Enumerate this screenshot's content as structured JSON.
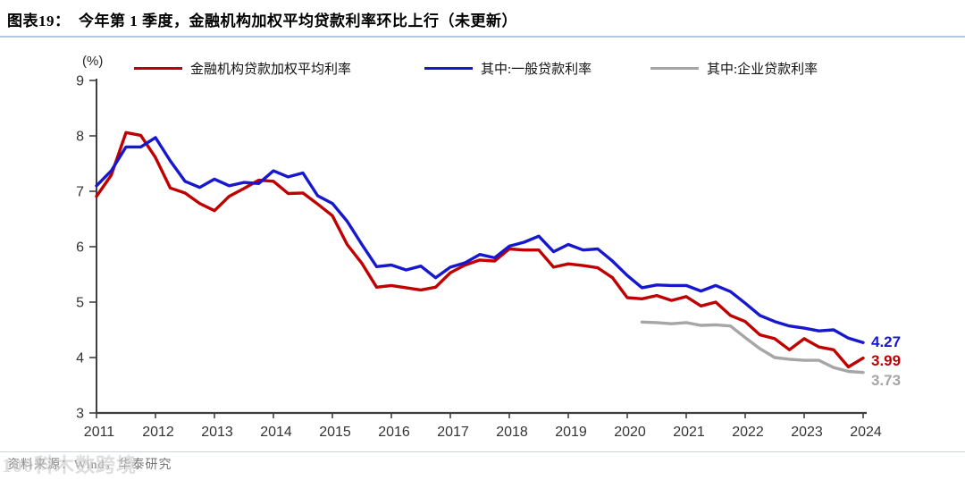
{
  "header": {
    "title": "图表19：  今年第 1 季度，金融机构加权平均贷款利率环比上行（未更新）"
  },
  "footer": {
    "source": "资料来源：Wind，华泰研究",
    "watermark": "100科木数跨境"
  },
  "chart_data": {
    "type": "line",
    "ylabel": "(%)",
    "ylim": [
      3,
      9
    ],
    "yticks": [
      3,
      4,
      5,
      6,
      7,
      8,
      9
    ],
    "x_tick_labels": [
      "2011",
      "2012",
      "2013",
      "2014",
      "2015",
      "2016",
      "2017",
      "2018",
      "2019",
      "2020",
      "2021",
      "2022",
      "2023",
      "2024"
    ],
    "x_unit": "quarter",
    "grid": false,
    "legend_position": "top",
    "series": [
      {
        "name": "金融机构贷款加权平均利率",
        "color": "#C00000",
        "start": "2011Q1",
        "values": [
          6.91,
          7.29,
          8.06,
          8.01,
          7.61,
          7.06,
          6.97,
          6.78,
          6.65,
          6.91,
          7.05,
          7.2,
          7.18,
          6.96,
          6.97,
          6.77,
          6.56,
          6.04,
          5.7,
          5.27,
          5.3,
          5.26,
          5.22,
          5.27,
          5.53,
          5.67,
          5.76,
          5.74,
          5.96,
          5.94,
          5.94,
          5.63,
          5.69,
          5.66,
          5.62,
          5.44,
          5.08,
          5.06,
          5.12,
          5.03,
          5.1,
          4.93,
          5.0,
          4.76,
          4.65,
          4.41,
          4.34,
          4.14,
          4.34,
          4.19,
          4.14,
          3.83,
          3.99
        ]
      },
      {
        "name": "其中:一般贷款利率",
        "color": "#1717CE",
        "start": "2011Q1",
        "values": [
          7.1,
          7.37,
          7.8,
          7.8,
          7.97,
          7.55,
          7.18,
          7.07,
          7.22,
          7.1,
          7.16,
          7.14,
          7.37,
          7.26,
          7.33,
          6.92,
          6.78,
          6.46,
          6.04,
          5.64,
          5.67,
          5.58,
          5.65,
          5.44,
          5.63,
          5.71,
          5.86,
          5.8,
          6.01,
          6.08,
          6.19,
          5.91,
          6.04,
          5.94,
          5.96,
          5.74,
          5.48,
          5.26,
          5.31,
          5.3,
          5.3,
          5.2,
          5.3,
          5.19,
          4.98,
          4.76,
          4.65,
          4.57,
          4.53,
          4.48,
          4.5,
          4.35,
          4.27
        ]
      },
      {
        "name": "其中:企业贷款利率",
        "color": "#A6A6A6",
        "start": "2020Q2",
        "values": [
          4.64,
          4.63,
          4.61,
          4.63,
          4.58,
          4.59,
          4.57,
          4.36,
          4.16,
          4.0,
          3.97,
          3.95,
          3.95,
          3.82,
          3.75,
          3.73
        ]
      }
    ],
    "end_labels": [
      {
        "text": "4.27",
        "color": "#1717CE",
        "series": "其中:一般贷款利率"
      },
      {
        "text": "3.99",
        "color": "#C00000",
        "series": "金融机构贷款加权平均利率"
      },
      {
        "text": "3.73",
        "color": "#A6A6A6",
        "series": "其中:企业贷款利率"
      }
    ]
  }
}
